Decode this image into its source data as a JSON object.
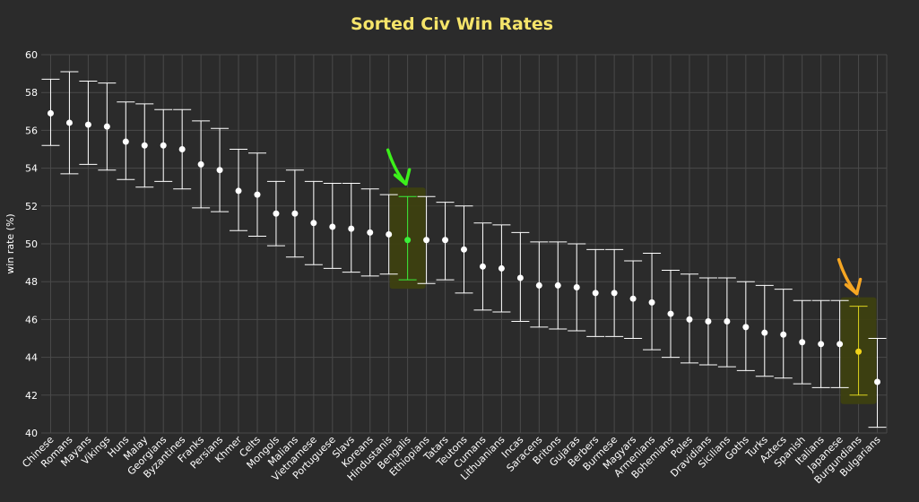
{
  "chart_data": {
    "type": "scatter",
    "title": "Sorted Civ Win Rates",
    "xlabel": "",
    "ylabel": "win rate (%)",
    "ylim": [
      40,
      60
    ],
    "yticks": [
      40,
      42,
      44,
      46,
      48,
      50,
      52,
      54,
      56,
      58,
      60
    ],
    "grid": true,
    "categories": [
      "Chinese",
      "Romans",
      "Mayans",
      "Vikings",
      "Huns",
      "Malay",
      "Georgians",
      "Byzantines",
      "Franks",
      "Persians",
      "Khmer",
      "Celts",
      "Mongols",
      "Malians",
      "Vietnamese",
      "Portuguese",
      "Slavs",
      "Koreans",
      "Hindustanis",
      "Bengalis",
      "Ethiopians",
      "Tatars",
      "Teutons",
      "Cumans",
      "Lithuanians",
      "Incas",
      "Saracens",
      "Britons",
      "Gujaras",
      "Berbers",
      "Burmese",
      "Magyars",
      "Armenians",
      "Bohemians",
      "Poles",
      "Dravidians",
      "Sicilians",
      "Goths",
      "Turks",
      "Aztecs",
      "Spanish",
      "Italians",
      "Japanese",
      "Burgundians",
      "Bulgarians"
    ],
    "values": [
      56.9,
      56.4,
      56.3,
      56.2,
      55.4,
      55.2,
      55.2,
      55.0,
      54.2,
      53.9,
      52.8,
      52.6,
      51.6,
      51.6,
      51.1,
      50.9,
      50.8,
      50.6,
      50.5,
      50.2,
      50.2,
      50.2,
      49.7,
      48.8,
      48.7,
      48.2,
      47.8,
      47.8,
      47.7,
      47.4,
      47.4,
      47.1,
      46.9,
      46.3,
      46.0,
      45.9,
      45.9,
      45.6,
      45.3,
      45.2,
      44.8,
      44.7,
      44.7,
      44.3,
      42.7
    ],
    "lower": [
      55.2,
      53.7,
      54.2,
      53.9,
      53.4,
      53.0,
      53.3,
      52.9,
      51.9,
      51.7,
      50.7,
      50.4,
      49.9,
      49.3,
      48.9,
      48.7,
      48.5,
      48.3,
      48.4,
      48.1,
      47.9,
      48.1,
      47.4,
      46.5,
      46.4,
      45.9,
      45.6,
      45.5,
      45.4,
      45.1,
      45.1,
      45.0,
      44.4,
      44.0,
      43.7,
      43.6,
      43.5,
      43.3,
      43.0,
      42.9,
      42.6,
      42.4,
      42.4,
      42.0,
      40.3
    ],
    "upper": [
      58.7,
      59.1,
      58.6,
      58.5,
      57.5,
      57.4,
      57.1,
      57.1,
      56.5,
      56.1,
      55.0,
      54.8,
      53.3,
      53.9,
      53.3,
      53.2,
      53.2,
      52.9,
      52.6,
      52.5,
      52.5,
      52.2,
      52.0,
      51.1,
      51.0,
      50.6,
      50.1,
      50.1,
      50.0,
      49.7,
      49.7,
      49.1,
      49.5,
      48.6,
      48.4,
      48.2,
      48.2,
      48.0,
      47.8,
      47.6,
      47.0,
      47.0,
      47.0,
      46.7,
      45.0
    ],
    "highlights": [
      {
        "category": "Bengalis",
        "point_color": "#3bf03b",
        "bar_color": "#3bf03b",
        "box_color": "#3d4010",
        "arrow_color": "#3cf01a"
      },
      {
        "category": "Burgundians",
        "point_color": "#f0d21a",
        "bar_color": "#dcd21e",
        "box_color": "#3d4010",
        "arrow_color": "#f5a623"
      }
    ],
    "colors": {
      "background": "#2b2b2b",
      "title": "#f5e46a",
      "text": "#ffffff",
      "grid": "#4a4a4a",
      "errorbar": "#ffffff",
      "point": "#ffffff"
    }
  }
}
